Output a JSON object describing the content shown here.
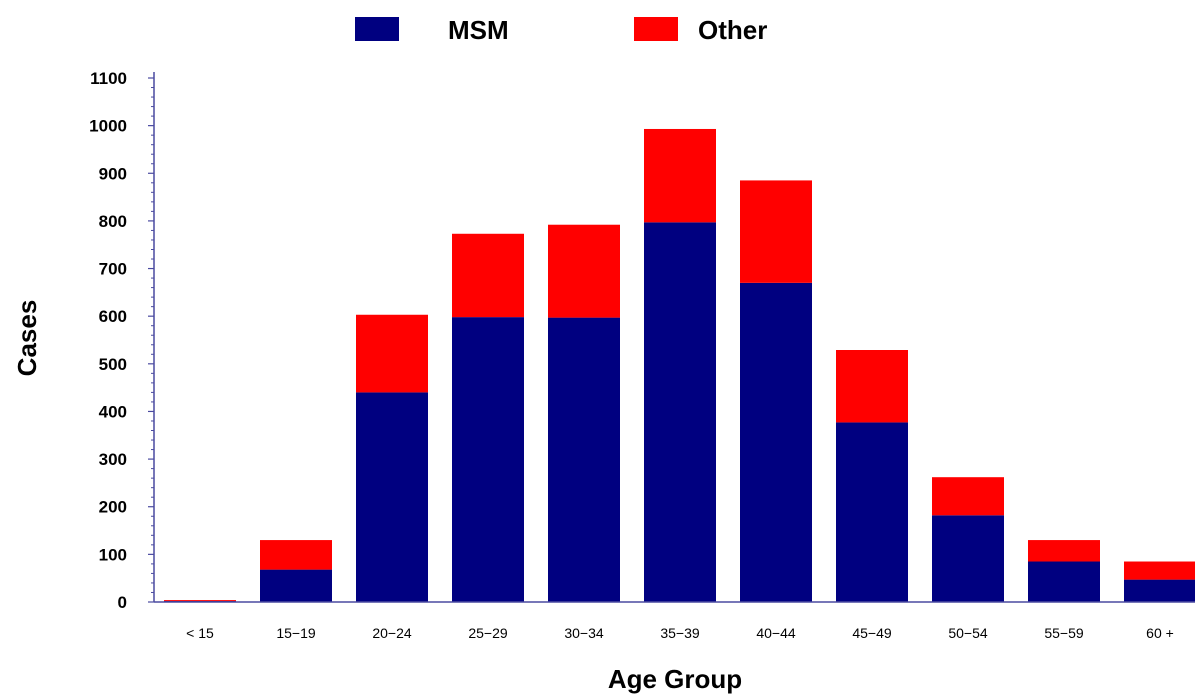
{
  "chart_data": {
    "type": "bar",
    "stacked": true,
    "title": "",
    "xlabel": "Age Group",
    "ylabel": "Cases",
    "ylim": [
      0,
      1100
    ],
    "yticks": [
      0,
      100,
      200,
      300,
      400,
      500,
      600,
      700,
      800,
      900,
      1000,
      1100
    ],
    "categories": [
      "< 15",
      "15−19",
      "20−24",
      "25−29",
      "30−34",
      "35−39",
      "40−44",
      "45−49",
      "50−54",
      "55−59",
      "60  +"
    ],
    "series": [
      {
        "name": "MSM",
        "color": "#000080",
        "values": [
          2,
          68,
          440,
          598,
          597,
          797,
          670,
          377,
          182,
          85,
          47
        ]
      },
      {
        "name": "Other",
        "color": "#ff0000",
        "values": [
          2,
          62,
          163,
          175,
          195,
          196,
          215,
          152,
          80,
          45,
          38
        ]
      }
    ],
    "legend_position": "top-center",
    "grid": false,
    "axis_color": "#4a4aa0"
  }
}
